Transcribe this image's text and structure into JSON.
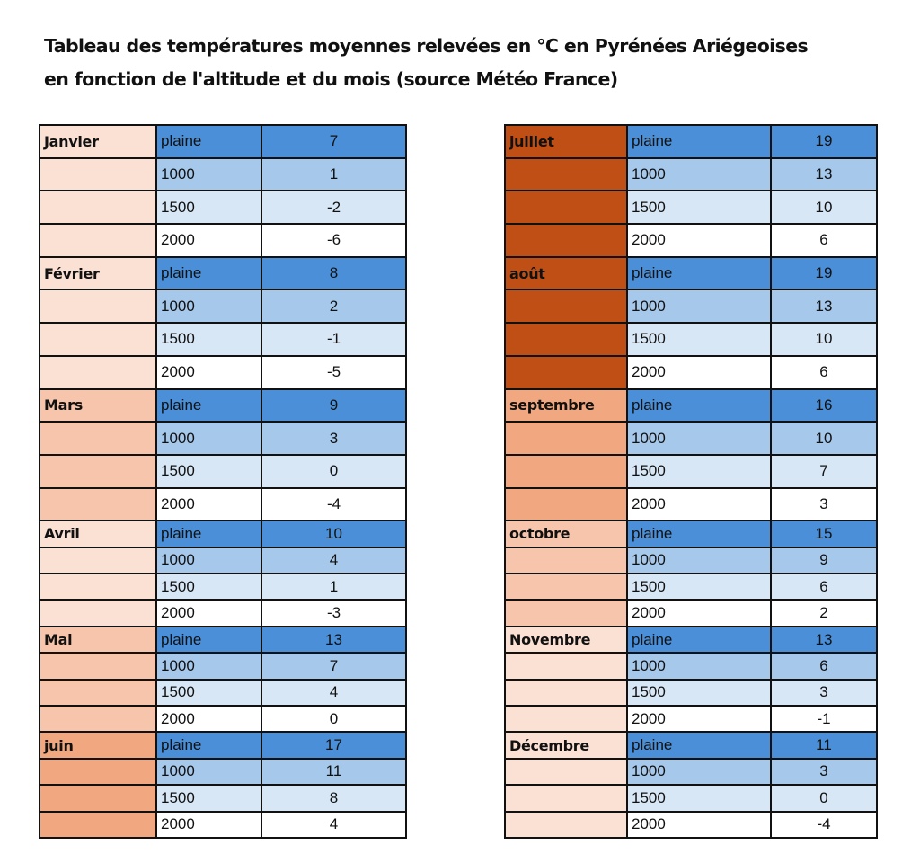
{
  "title_line1": "Tableau des températures moyennes relevées en °C en Pyrénées Ariégeoises",
  "title_line2": "en fonction de l'altitude et du mois (source Météo France)",
  "altitude_colors": {
    "plaine": "#4a8fd8",
    "1000": "#a6c8eb",
    "1500": "#d8e7f6",
    "2000": "#ffffff"
  },
  "left_table": [
    {
      "month": "Janvier",
      "color": "#fbe0d4",
      "rows": [
        {
          "alt": "plaine",
          "val": "7"
        },
        {
          "alt": "1000",
          "val": "1"
        },
        {
          "alt": "1500",
          "val": "-2"
        },
        {
          "alt": "2000",
          "val": "-6"
        }
      ]
    },
    {
      "month": "Février",
      "color": "#fbe0d4",
      "rows": [
        {
          "alt": "plaine",
          "val": "8"
        },
        {
          "alt": "1000",
          "val": "2"
        },
        {
          "alt": "1500",
          "val": "-1"
        },
        {
          "alt": "2000",
          "val": "-5"
        }
      ]
    },
    {
      "month": "Mars",
      "color": "#f6c5ab",
      "rows": [
        {
          "alt": "plaine",
          "val": "9"
        },
        {
          "alt": "1000",
          "val": "3"
        },
        {
          "alt": "1500",
          "val": "0"
        },
        {
          "alt": "2000",
          "val": "-4"
        }
      ]
    },
    {
      "month": "Avril",
      "color": "#fbe0d4",
      "rows": [
        {
          "alt": "plaine",
          "val": "10"
        },
        {
          "alt": "1000",
          "val": "4"
        },
        {
          "alt": "1500",
          "val": "1"
        },
        {
          "alt": "2000",
          "val": "-3"
        }
      ]
    },
    {
      "month": "Mai",
      "color": "#f6c5ab",
      "rows": [
        {
          "alt": "plaine",
          "val": "13"
        },
        {
          "alt": "1000",
          "val": "7"
        },
        {
          "alt": "1500",
          "val": "4"
        },
        {
          "alt": "2000",
          "val": "0"
        }
      ]
    },
    {
      "month": "juin",
      "color": "#f1a780",
      "rows": [
        {
          "alt": "plaine",
          "val": "17"
        },
        {
          "alt": "1000",
          "val": "11"
        },
        {
          "alt": "1500",
          "val": "8"
        },
        {
          "alt": "2000",
          "val": "4"
        }
      ]
    }
  ],
  "right_table": [
    {
      "month": "juillet",
      "color": "#c04f15",
      "rows": [
        {
          "alt": "plaine",
          "val": "19"
        },
        {
          "alt": "1000",
          "val": "13"
        },
        {
          "alt": "1500",
          "val": "10"
        },
        {
          "alt": "2000",
          "val": "6"
        }
      ]
    },
    {
      "month": "août",
      "color": "#c04f15",
      "rows": [
        {
          "alt": "plaine",
          "val": "19"
        },
        {
          "alt": "1000",
          "val": "13"
        },
        {
          "alt": "1500",
          "val": "10"
        },
        {
          "alt": "2000",
          "val": "6"
        }
      ]
    },
    {
      "month": "septembre",
      "color": "#f1a780",
      "rows": [
        {
          "alt": "plaine",
          "val": "16"
        },
        {
          "alt": "1000",
          "val": "10"
        },
        {
          "alt": "1500",
          "val": "7"
        },
        {
          "alt": "2000",
          "val": "3"
        }
      ]
    },
    {
      "month": "octobre",
      "color": "#f6c5ab",
      "rows": [
        {
          "alt": "plaine",
          "val": "15"
        },
        {
          "alt": "1000",
          "val": "9"
        },
        {
          "alt": "1500",
          "val": "6"
        },
        {
          "alt": "2000",
          "val": "2"
        }
      ]
    },
    {
      "month": "Novembre",
      "color": "#fbe0d4",
      "rows": [
        {
          "alt": "plaine",
          "val": "13"
        },
        {
          "alt": "1000",
          "val": "6"
        },
        {
          "alt": "1500",
          "val": "3"
        },
        {
          "alt": "2000",
          "val": "-1"
        }
      ]
    },
    {
      "month": "Décembre",
      "color": "#fbe0d4",
      "rows": [
        {
          "alt": "plaine",
          "val": "11"
        },
        {
          "alt": "1000",
          "val": "3"
        },
        {
          "alt": "1500",
          "val": "0"
        },
        {
          "alt": "2000",
          "val": "-4"
        }
      ]
    }
  ]
}
